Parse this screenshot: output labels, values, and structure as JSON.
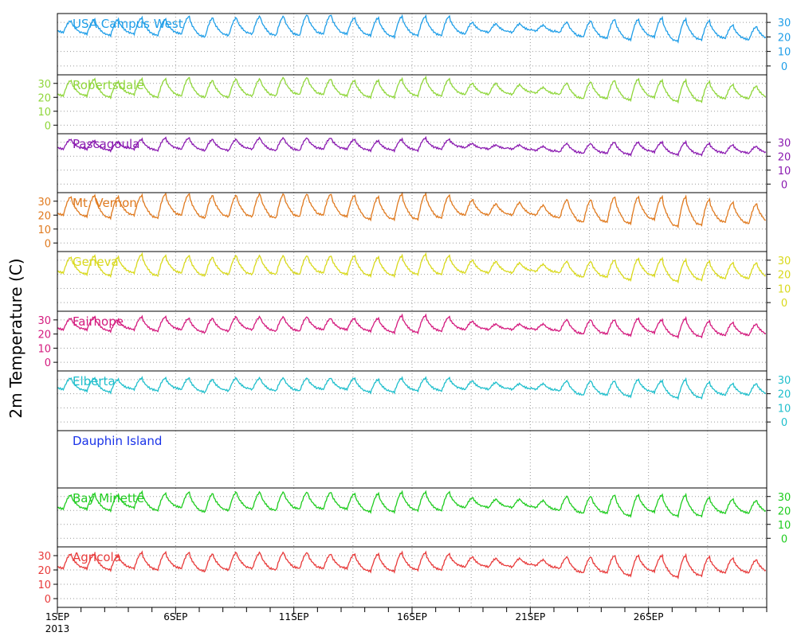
{
  "chart_data": {
    "type": "line",
    "ylabel": "2m Temperature (C)",
    "x": {
      "start": "2013-09-01",
      "end": "2013-09-30",
      "year_label": "2013",
      "tick_labels": [
        {
          "date": "2013-09-01",
          "label": "1SEP"
        },
        {
          "date": "2013-09-06",
          "label": "6SEP"
        },
        {
          "date": "2013-09-11",
          "label": "11SEP"
        },
        {
          "date": "2013-09-16",
          "label": "16SEP"
        },
        {
          "date": "2013-09-21",
          "label": "21SEP"
        },
        {
          "date": "2013-09-26",
          "label": "26SEP"
        }
      ]
    },
    "y_ticks": [
      0,
      10,
      20,
      30
    ],
    "ylim": [
      -5,
      35
    ],
    "grid": true,
    "panels": [
      {
        "name": "USA Campus West",
        "color": "#1f9ee8",
        "axis_side": "right",
        "daily_min": [
          23,
          22,
          21,
          22,
          21,
          22,
          20,
          21,
          22,
          21,
          21,
          22,
          22,
          21,
          20,
          21,
          21,
          22,
          23,
          23,
          24,
          23,
          20,
          19,
          18,
          20,
          17,
          18,
          19,
          18
        ],
        "daily_max": [
          31,
          32,
          32,
          33,
          32,
          34,
          33,
          33,
          34,
          34,
          35,
          35,
          33,
          33,
          34,
          34,
          34,
          30,
          29,
          29,
          28,
          30,
          31,
          32,
          32,
          33,
          32,
          31,
          28,
          27
        ]
      },
      {
        "name": "Robertsdale",
        "color": "#8fd63a",
        "axis_side": "left",
        "daily_min": [
          21,
          21,
          20,
          22,
          20,
          21,
          20,
          20,
          21,
          21,
          22,
          22,
          21,
          20,
          20,
          21,
          21,
          22,
          22,
          22,
          23,
          22,
          19,
          19,
          18,
          20,
          17,
          17,
          19,
          19
        ],
        "daily_max": [
          32,
          33,
          31,
          33,
          33,
          34,
          32,
          33,
          33,
          34,
          34,
          33,
          32,
          32,
          33,
          34,
          33,
          30,
          30,
          29,
          27,
          30,
          31,
          32,
          33,
          32,
          32,
          31,
          29,
          28
        ]
      },
      {
        "name": "Pascagoula",
        "color": "#8a1ab0",
        "axis_side": "right",
        "daily_min": [
          25,
          25,
          24,
          25,
          24,
          25,
          24,
          24,
          25,
          24,
          24,
          25,
          25,
          24,
          24,
          24,
          25,
          26,
          25,
          25,
          24,
          23,
          22,
          22,
          21,
          23,
          21,
          21,
          22,
          22
        ],
        "daily_max": [
          32,
          31,
          30,
          32,
          33,
          33,
          32,
          32,
          33,
          33,
          33,
          33,
          32,
          31,
          32,
          33,
          32,
          29,
          28,
          28,
          27,
          29,
          29,
          30,
          30,
          30,
          30,
          29,
          28,
          27
        ]
      },
      {
        "name": "Mt. Vernon",
        "color": "#e07a1f",
        "axis_side": "left",
        "daily_min": [
          20,
          19,
          18,
          20,
          18,
          20,
          18,
          19,
          19,
          18,
          19,
          20,
          19,
          17,
          17,
          17,
          18,
          20,
          20,
          20,
          20,
          18,
          15,
          15,
          14,
          17,
          12,
          13,
          15,
          14
        ],
        "daily_max": [
          33,
          34,
          33,
          34,
          35,
          35,
          34,
          34,
          35,
          35,
          35,
          35,
          34,
          33,
          35,
          35,
          34,
          31,
          28,
          29,
          27,
          31,
          31,
          33,
          33,
          33,
          33,
          31,
          29,
          28
        ]
      },
      {
        "name": "Geneva",
        "color": "#d9d91c",
        "axis_side": "right",
        "daily_min": [
          21,
          20,
          19,
          21,
          19,
          21,
          19,
          20,
          20,
          20,
          20,
          21,
          20,
          19,
          19,
          20,
          20,
          21,
          21,
          21,
          22,
          21,
          18,
          18,
          16,
          19,
          15,
          16,
          17,
          17
        ],
        "daily_max": [
          32,
          33,
          32,
          34,
          33,
          33,
          32,
          33,
          33,
          33,
          33,
          33,
          33,
          32,
          33,
          34,
          33,
          30,
          29,
          28,
          27,
          29,
          29,
          30,
          31,
          31,
          30,
          29,
          28,
          28
        ]
      },
      {
        "name": "Fairhope",
        "color": "#d41a7e",
        "axis_side": "left",
        "daily_min": [
          23,
          23,
          22,
          23,
          22,
          23,
          21,
          22,
          23,
          22,
          22,
          23,
          23,
          22,
          21,
          21,
          22,
          23,
          23,
          23,
          23,
          22,
          20,
          20,
          19,
          21,
          18,
          18,
          19,
          19
        ],
        "daily_max": [
          31,
          32,
          30,
          32,
          32,
          31,
          31,
          32,
          32,
          32,
          32,
          31,
          31,
          31,
          33,
          33,
          32,
          29,
          27,
          27,
          27,
          30,
          30,
          30,
          31,
          30,
          31,
          29,
          28,
          27
        ]
      },
      {
        "name": "Elberta",
        "color": "#1fbfcc",
        "axis_side": "right",
        "daily_min": [
          23,
          22,
          21,
          23,
          22,
          23,
          21,
          22,
          23,
          22,
          22,
          23,
          23,
          21,
          21,
          22,
          22,
          23,
          23,
          23,
          23,
          22,
          19,
          19,
          18,
          21,
          17,
          17,
          19,
          19
        ],
        "daily_max": [
          31,
          31,
          30,
          31,
          31,
          31,
          30,
          31,
          31,
          31,
          31,
          31,
          31,
          30,
          31,
          31,
          31,
          29,
          28,
          27,
          27,
          29,
          29,
          29,
          30,
          29,
          30,
          28,
          27,
          27
        ]
      },
      {
        "name": "Dauphin Island",
        "color": "#1a33e8",
        "axis_side": "none",
        "daily_min": [],
        "daily_max": []
      },
      {
        "name": "Bay Minette",
        "color": "#1fcc1f",
        "axis_side": "right",
        "daily_min": [
          21,
          21,
          20,
          22,
          20,
          22,
          19,
          20,
          21,
          20,
          21,
          21,
          21,
          19,
          19,
          20,
          20,
          22,
          22,
          22,
          22,
          20,
          18,
          18,
          16,
          19,
          16,
          16,
          18,
          18
        ],
        "daily_max": [
          31,
          32,
          31,
          33,
          32,
          33,
          32,
          33,
          33,
          33,
          33,
          33,
          32,
          32,
          33,
          33,
          33,
          29,
          28,
          28,
          27,
          30,
          30,
          31,
          31,
          31,
          31,
          29,
          28,
          27
        ]
      },
      {
        "name": "Agricola",
        "color": "#e83a3a",
        "axis_side": "left",
        "daily_min": [
          21,
          21,
          20,
          21,
          20,
          21,
          19,
          20,
          21,
          20,
          21,
          21,
          21,
          19,
          19,
          20,
          20,
          22,
          22,
          22,
          23,
          21,
          18,
          18,
          16,
          19,
          15,
          16,
          18,
          18
        ],
        "daily_max": [
          31,
          31,
          30,
          32,
          32,
          32,
          31,
          32,
          32,
          32,
          32,
          31,
          31,
          31,
          32,
          32,
          31,
          29,
          28,
          28,
          27,
          29,
          29,
          30,
          30,
          30,
          30,
          29,
          28,
          27
        ]
      }
    ]
  }
}
